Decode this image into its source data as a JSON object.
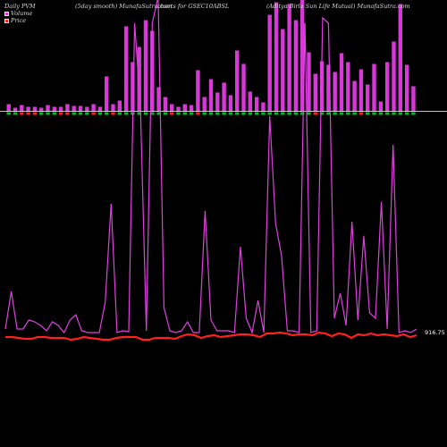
{
  "header": {
    "left": "Daily PVM",
    "middle": "(5day smooth) MunafaSutra.com",
    "center": "charts for GSEC10ABSL",
    "right": "(Aditya Birla Sun Life Mutual) MunafaSutra.com"
  },
  "legend": {
    "volume_label": "Volume",
    "price_label": "Price",
    "volume_color": "#d838d8",
    "price_color": "#ff2020"
  },
  "colors": {
    "background": "#000000",
    "volume_bar": "#d838d8",
    "up_marker": "#00c020",
    "down_marker": "#ff2020",
    "volume_line": "#e040e0",
    "price_line": "#ff2020",
    "baseline": "#ffffff"
  },
  "chart_data": {
    "type": "bar",
    "last_price_label": "916.75",
    "volume_bars": [
      8,
      4,
      7,
      5,
      5,
      4,
      7,
      5,
      5,
      8,
      6,
      6,
      5,
      8,
      5,
      39,
      8,
      12,
      95,
      55,
      72,
      102,
      90,
      27,
      16,
      8,
      5,
      8,
      7,
      46,
      16,
      36,
      21,
      32,
      18,
      68,
      53,
      22,
      16,
      10,
      108,
      122,
      92,
      120,
      102,
      142,
      66,
      42,
      56,
      52,
      44,
      65,
      55,
      34,
      47,
      30,
      53,
      11,
      55,
      78,
      120,
      52,
      28
    ],
    "up_down": [
      1,
      1,
      0,
      0,
      0,
      1,
      1,
      1,
      0,
      0,
      1,
      1,
      1,
      0,
      1,
      1,
      0,
      1,
      1,
      1,
      1,
      1,
      1,
      1,
      1,
      0,
      1,
      1,
      1,
      0,
      1,
      1,
      1,
      1,
      1,
      1,
      1,
      1,
      1,
      1,
      1,
      1,
      1,
      1,
      1,
      1,
      1,
      0,
      1,
      1,
      1,
      1,
      1,
      1,
      0,
      1,
      1,
      1,
      1,
      1,
      1,
      1,
      1
    ],
    "volume_line": [
      8,
      50,
      8,
      8,
      18,
      16,
      12,
      6,
      16,
      12,
      4,
      18,
      24,
      6,
      4,
      4,
      4,
      38,
      148,
      4,
      6,
      5,
      350,
      256,
      6,
      350,
      380,
      32,
      6,
      4,
      6,
      16,
      4,
      4,
      140,
      18,
      6,
      6,
      6,
      4,
      100,
      20,
      4,
      40,
      4,
      246,
      126,
      90,
      6,
      6,
      4,
      350,
      4,
      6,
      356,
      350,
      20,
      48,
      12,
      128,
      18,
      112,
      26,
      20,
      150,
      8,
      214,
      4,
      6,
      4,
      8
    ],
    "price_line": [
      3,
      3,
      2,
      1,
      1,
      3,
      3,
      2,
      2,
      2,
      0,
      1,
      3,
      2,
      1,
      0,
      0,
      2,
      3,
      3,
      3,
      0,
      0,
      2,
      2,
      2,
      1,
      4,
      6,
      5,
      2,
      4,
      5,
      3,
      4,
      5,
      6,
      6,
      5,
      3,
      7,
      7,
      8,
      7,
      5,
      6,
      6,
      5,
      8,
      7,
      4,
      7,
      6,
      2,
      6,
      5,
      7,
      5,
      6,
      5,
      4,
      6,
      3,
      5
    ]
  }
}
